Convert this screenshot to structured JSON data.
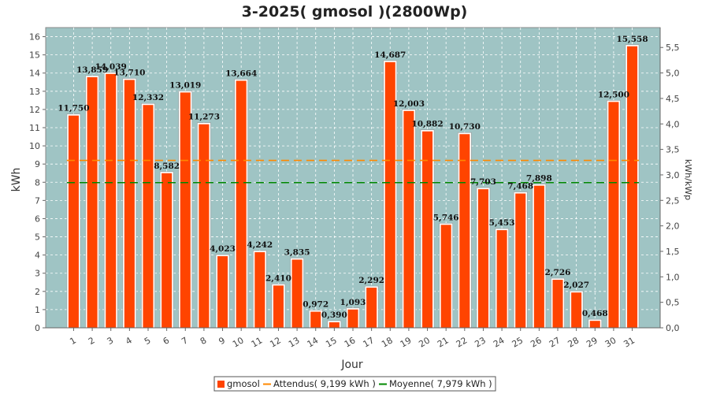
{
  "chart_data": {
    "type": "bar",
    "title": "3-2025( gmosol )(2800Wp)",
    "xlabel": "Jour",
    "ylabel": "kWh",
    "y2label": "kWh/kWp",
    "ylim": [
      0,
      16.5
    ],
    "y2lim": [
      0,
      5.89
    ],
    "yticks": [
      "0",
      "1",
      "2",
      "3",
      "4",
      "5",
      "6",
      "7",
      "8",
      "9",
      "10",
      "11",
      "12",
      "13",
      "14",
      "15",
      "16"
    ],
    "y2ticks": [
      "0,0",
      "0,5",
      "1,0",
      "1,5",
      "2,0",
      "2,5",
      "3,0",
      "3,5",
      "4,0",
      "4,5",
      "5,0",
      "5,5"
    ],
    "grid": true,
    "legend_position": "bottom",
    "categories": [
      "1",
      "2",
      "3",
      "4",
      "5",
      "6",
      "7",
      "8",
      "9",
      "10",
      "11",
      "12",
      "13",
      "14",
      "15",
      "16",
      "17",
      "18",
      "19",
      "20",
      "21",
      "22",
      "23",
      "24",
      "25",
      "26",
      "27",
      "28",
      "29",
      "30",
      "31"
    ],
    "series": [
      {
        "name": "gmosol",
        "type": "bar",
        "color": "#ff4400",
        "values": [
          11.75,
          13.859,
          14.039,
          13.71,
          12.332,
          8.582,
          13.019,
          11.273,
          4.023,
          13.664,
          4.242,
          2.41,
          3.835,
          0.972,
          0.39,
          1.093,
          2.292,
          14.687,
          12.003,
          10.882,
          5.746,
          10.73,
          7.703,
          5.453,
          7.468,
          7.898,
          2.726,
          2.027,
          0.468,
          12.5,
          15.558
        ],
        "labels": [
          "11,750",
          "13,859",
          "14,039",
          "13,710",
          "12,332",
          "8,582",
          "13,019",
          "11,273",
          "4,023",
          "13,664",
          "4,242",
          "2,410",
          "3,835",
          "0,972",
          "0,390",
          "1,093",
          "2,292",
          "14,687",
          "12,003",
          "10,882",
          "5,746",
          "10,730",
          "7,703",
          "5,453",
          "7,468",
          "7,898",
          "2,726",
          "2,027",
          "0,468",
          "12,500",
          "15,558"
        ]
      },
      {
        "name": "Attendus( 9,199 kWh )",
        "type": "hline",
        "value": 9.199,
        "color": "#ff8800"
      },
      {
        "name": "Moyenne( 7,979 kWh )",
        "type": "hline",
        "value": 7.979,
        "color": "#008800"
      }
    ],
    "colors": {
      "plot_background": "#9fc4c4",
      "grid": "#ffffff"
    }
  }
}
